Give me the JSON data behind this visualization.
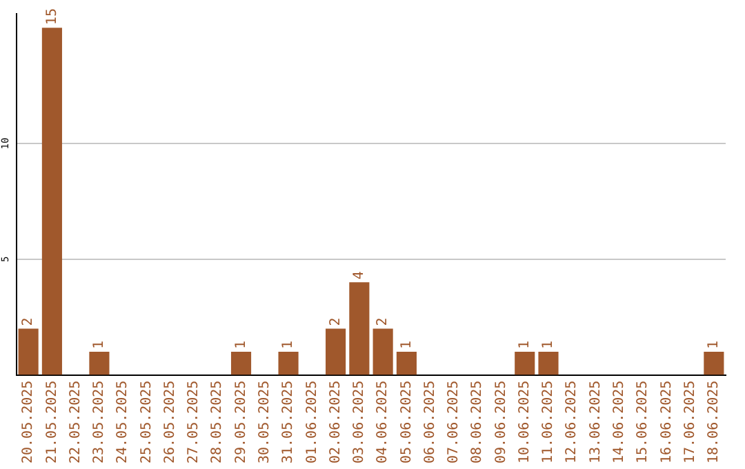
{
  "chart_data": {
    "type": "bar",
    "categories": [
      "20.05.2025",
      "21.05.2025",
      "22.05.2025",
      "23.05.2025",
      "24.05.2025",
      "25.05.2025",
      "26.05.2025",
      "27.05.2025",
      "28.05.2025",
      "29.05.2025",
      "30.05.2025",
      "31.05.2025",
      "01.06.2025",
      "02.06.2025",
      "03.06.2025",
      "04.06.2025",
      "05.06.2025",
      "06.06.2025",
      "07.06.2025",
      "08.06.2025",
      "09.06.2025",
      "10.06.2025",
      "11.06.2025",
      "12.06.2025",
      "13.06.2025",
      "14.06.2025",
      "15.06.2025",
      "16.06.2025",
      "17.06.2025",
      "18.06.2025"
    ],
    "values": [
      2,
      15,
      0,
      1,
      0,
      0,
      0,
      0,
      0,
      1,
      0,
      1,
      0,
      2,
      4,
      2,
      1,
      0,
      0,
      0,
      0,
      1,
      1,
      0,
      0,
      0,
      0,
      0,
      0,
      1
    ],
    "value_labels": [
      "2",
      "15",
      null,
      "1",
      null,
      null,
      null,
      null,
      null,
      "1",
      null,
      "1",
      null,
      "2",
      "4",
      "2",
      "1",
      null,
      null,
      null,
      null,
      "1",
      "1",
      null,
      null,
      null,
      null,
      null,
      null,
      "1"
    ],
    "color": "#a0582c",
    "ylim": [
      0,
      15.6
    ],
    "yticks": [
      5,
      10
    ],
    "grid": "y",
    "legend": false
  }
}
